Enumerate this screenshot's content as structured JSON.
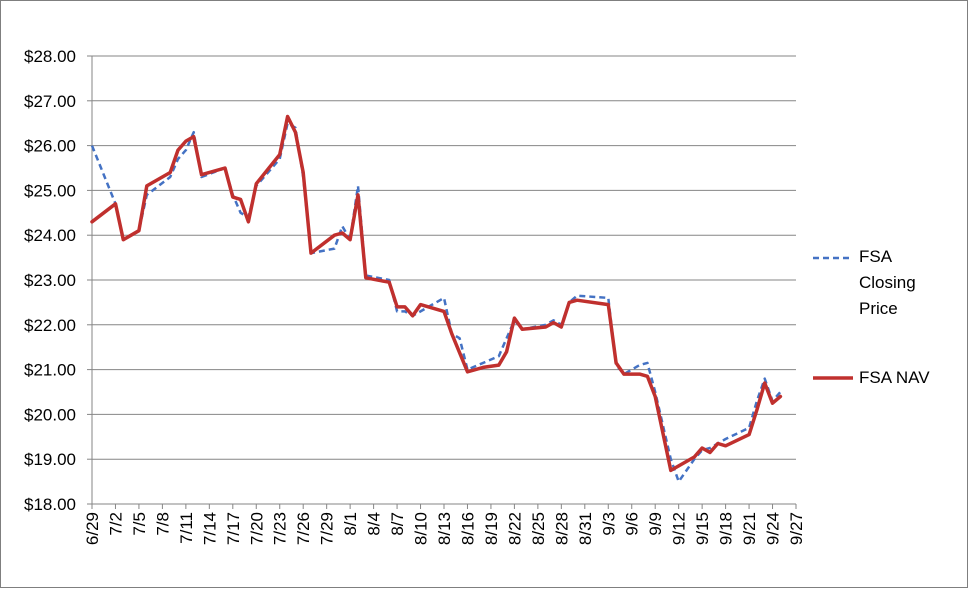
{
  "chart_data": {
    "type": "line",
    "title": "",
    "xlabel": "",
    "ylabel": "",
    "ylim": [
      18,
      28
    ],
    "y_ticks": [
      18,
      19,
      20,
      21,
      22,
      23,
      24,
      25,
      26,
      27,
      28
    ],
    "y_tick_labels": [
      "$18.00",
      "$19.00",
      "$20.00",
      "$21.00",
      "$22.00",
      "$23.00",
      "$24.00",
      "$25.00",
      "$26.00",
      "$27.00",
      "$28.00"
    ],
    "grid": true,
    "legend_position": "right",
    "x_tick_labels": [
      "6/29",
      "7/2",
      "7/5",
      "7/8",
      "7/11",
      "7/14",
      "7/17",
      "7/20",
      "7/23",
      "7/26",
      "7/29",
      "8/1",
      "8/4",
      "8/7",
      "8/10",
      "8/13",
      "8/16",
      "8/19",
      "8/22",
      "8/25",
      "8/28",
      "8/31",
      "9/3",
      "9/6",
      "9/9",
      "9/12",
      "9/15",
      "9/18",
      "9/21",
      "9/24",
      "9/27"
    ],
    "x_range": [
      0,
      90
    ],
    "series": [
      {
        "name": "FSA Closing Price",
        "color": "#4472c4",
        "style": "dashed",
        "points": [
          [
            0,
            26.0
          ],
          [
            3,
            24.7
          ],
          [
            4,
            23.9
          ],
          [
            6,
            24.1
          ],
          [
            7,
            24.9
          ],
          [
            10,
            25.3
          ],
          [
            11,
            25.7
          ],
          [
            12,
            25.9
          ],
          [
            13,
            26.3
          ],
          [
            14,
            25.3
          ],
          [
            17,
            25.5
          ],
          [
            18,
            24.9
          ],
          [
            19,
            24.5
          ],
          [
            20,
            24.4
          ],
          [
            21,
            25.1
          ],
          [
            24,
            25.7
          ],
          [
            25,
            26.5
          ],
          [
            26,
            26.4
          ],
          [
            27,
            25.3
          ],
          [
            28,
            23.6
          ],
          [
            31,
            23.7
          ],
          [
            32,
            24.2
          ],
          [
            33,
            23.9
          ],
          [
            34,
            25.1
          ],
          [
            35,
            23.1
          ],
          [
            38,
            23.0
          ],
          [
            39,
            22.3
          ],
          [
            40,
            22.3
          ],
          [
            41,
            22.2
          ],
          [
            42,
            22.3
          ],
          [
            45,
            22.6
          ],
          [
            46,
            21.8
          ],
          [
            47,
            21.7
          ],
          [
            48,
            21.0
          ],
          [
            52,
            21.3
          ],
          [
            53,
            21.7
          ],
          [
            54,
            22.1
          ],
          [
            55,
            21.9
          ],
          [
            58,
            22.0
          ],
          [
            59,
            22.1
          ],
          [
            60,
            22.0
          ],
          [
            61,
            22.5
          ],
          [
            62,
            22.65
          ],
          [
            66,
            22.6
          ],
          [
            67,
            21.1
          ],
          [
            68,
            20.9
          ],
          [
            69,
            21.0
          ],
          [
            70,
            21.1
          ],
          [
            71,
            21.15
          ],
          [
            72,
            20.5
          ],
          [
            74,
            19.0
          ],
          [
            75,
            18.5
          ],
          [
            77,
            19.0
          ],
          [
            78,
            19.2
          ],
          [
            79,
            19.25
          ],
          [
            80,
            19.35
          ],
          [
            81,
            19.45
          ],
          [
            84,
            19.7
          ],
          [
            85,
            20.3
          ],
          [
            86,
            20.8
          ],
          [
            87,
            20.3
          ],
          [
            88,
            20.5
          ]
        ]
      },
      {
        "name": "FSA NAV",
        "color": "#c0302e",
        "style": "solid",
        "points": [
          [
            0,
            24.3
          ],
          [
            3,
            24.7
          ],
          [
            4,
            23.9
          ],
          [
            6,
            24.1
          ],
          [
            7,
            25.1
          ],
          [
            10,
            25.4
          ],
          [
            11,
            25.9
          ],
          [
            12,
            26.1
          ],
          [
            13,
            26.2
          ],
          [
            14,
            25.35
          ],
          [
            17,
            25.5
          ],
          [
            18,
            24.85
          ],
          [
            19,
            24.8
          ],
          [
            20,
            24.3
          ],
          [
            21,
            25.15
          ],
          [
            24,
            25.8
          ],
          [
            25,
            26.65
          ],
          [
            26,
            26.3
          ],
          [
            27,
            25.4
          ],
          [
            28,
            23.6
          ],
          [
            31,
            24.0
          ],
          [
            32,
            24.05
          ],
          [
            33,
            23.9
          ],
          [
            34,
            24.9
          ],
          [
            35,
            23.05
          ],
          [
            38,
            22.95
          ],
          [
            39,
            22.4
          ],
          [
            40,
            22.4
          ],
          [
            41,
            22.2
          ],
          [
            42,
            22.45
          ],
          [
            45,
            22.3
          ],
          [
            46,
            21.8
          ],
          [
            48,
            20.95
          ],
          [
            50,
            21.05
          ],
          [
            52,
            21.1
          ],
          [
            53,
            21.4
          ],
          [
            54,
            22.15
          ],
          [
            55,
            21.9
          ],
          [
            58,
            21.95
          ],
          [
            59,
            22.05
          ],
          [
            60,
            21.95
          ],
          [
            61,
            22.5
          ],
          [
            62,
            22.55
          ],
          [
            66,
            22.45
          ],
          [
            67,
            21.15
          ],
          [
            68,
            20.9
          ],
          [
            69,
            20.9
          ],
          [
            70,
            20.9
          ],
          [
            71,
            20.85
          ],
          [
            72,
            20.4
          ],
          [
            74,
            18.75
          ],
          [
            75,
            18.85
          ],
          [
            77,
            19.05
          ],
          [
            78,
            19.25
          ],
          [
            79,
            19.15
          ],
          [
            80,
            19.35
          ],
          [
            81,
            19.3
          ],
          [
            84,
            19.55
          ],
          [
            85,
            20.1
          ],
          [
            86,
            20.7
          ],
          [
            87,
            20.25
          ],
          [
            88,
            20.4
          ]
        ]
      }
    ]
  },
  "legend": {
    "series0_label_lines": [
      "FSA",
      "Closing",
      "Price"
    ],
    "series1_label": "FSA NAV"
  }
}
